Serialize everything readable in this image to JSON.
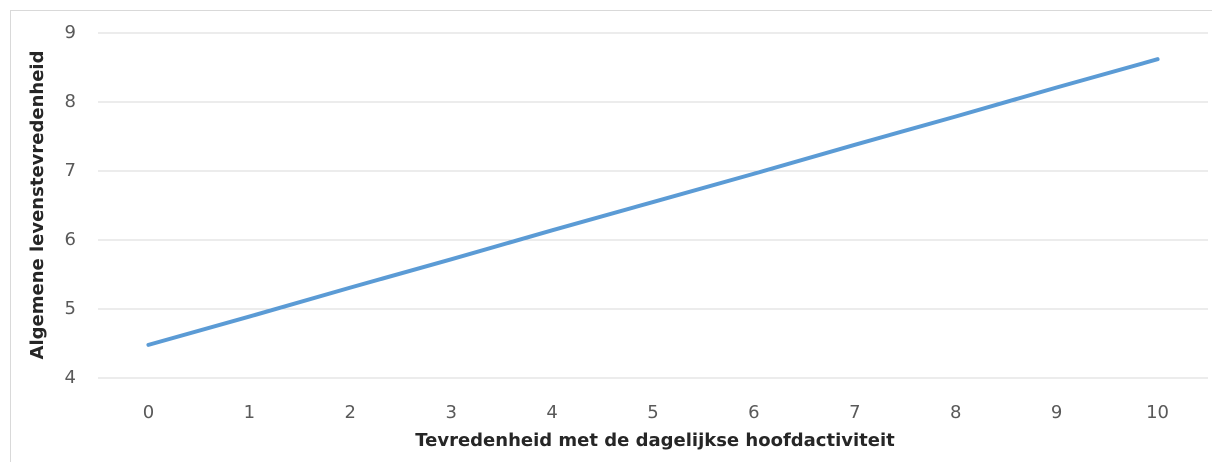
{
  "chart_data": {
    "type": "line",
    "x_label": "Tevredenheid met de dagelijkse hoofdactiviteit",
    "y_label": "Algemene levenstevredenheid",
    "categories": [
      "0",
      "1",
      "2",
      "3",
      "4",
      "5",
      "6",
      "7",
      "8",
      "9",
      "10"
    ],
    "series": [
      {
        "name": "Algemene levenstevredenheid",
        "color": "#5b9bd5",
        "values": [
          4.48,
          4.89,
          5.31,
          5.72,
          6.14,
          6.55,
          6.96,
          7.38,
          7.79,
          8.21,
          8.62
        ]
      }
    ],
    "ylim": [
      4,
      9
    ],
    "yticks": [
      4,
      5,
      6,
      7,
      8,
      9
    ],
    "grid": true
  }
}
